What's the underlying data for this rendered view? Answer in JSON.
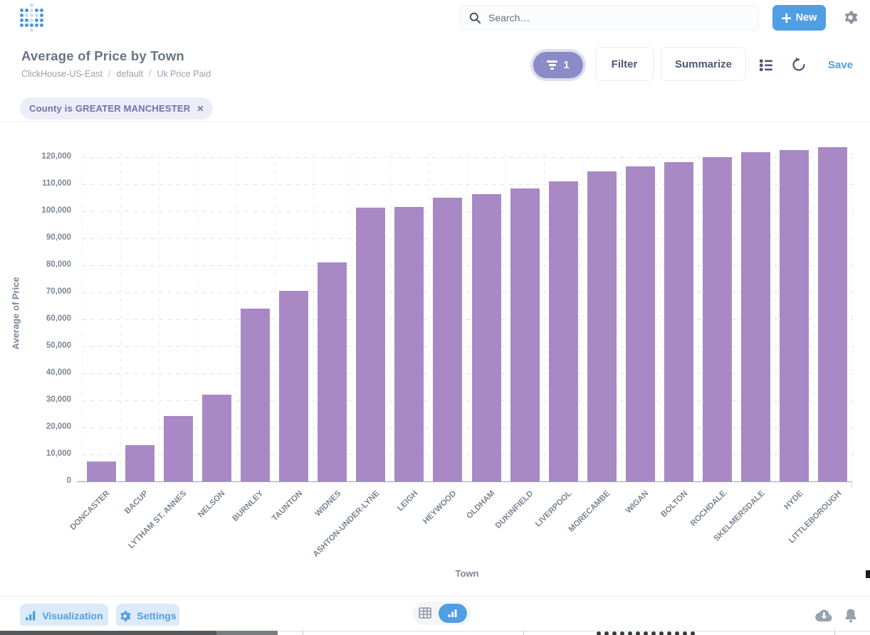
{
  "header": {
    "search_placeholder": "Search…",
    "new_label": "New"
  },
  "question": {
    "title": "Average of Price by Town",
    "breadcrumb": [
      "ClickHouse-US-East",
      "default",
      "Uk Price Paid"
    ],
    "filter_badge_count": "1",
    "filter_label": "Filter",
    "summarize_label": "Summarize",
    "save_label": "Save"
  },
  "filter_chip": {
    "text": "County is GREATER MANCHESTER",
    "close": "✕"
  },
  "footer": {
    "visualization_label": "Visualization",
    "settings_label": "Settings"
  },
  "colors": {
    "brand_blue": "#509EE3",
    "bar_purple": "#A989C5",
    "filter_purple": "#8A8BC7",
    "chip_bg": "#ECEDF8",
    "chip_text": "#7172AD",
    "axis_text": "#7C8693"
  },
  "chart_data": {
    "type": "bar",
    "title": "Average of Price by Town",
    "xlabel": "Town",
    "ylabel": "Average of Price",
    "ylim": [
      0,
      125000
    ],
    "grid": true,
    "y_ticks": [
      0,
      10000,
      20000,
      30000,
      40000,
      50000,
      60000,
      70000,
      80000,
      90000,
      100000,
      110000,
      120000
    ],
    "categories": [
      "DONCASTER",
      "BACUP",
      "LYTHAM ST. ANNES",
      "NELSON",
      "BURNLEY",
      "TAUNTON",
      "WIDNES",
      "ASHTON-UNDER-LYNE",
      "LEIGH",
      "HEYWOOD",
      "OLDHAM",
      "DUKINFIELD",
      "LIVERPOOL",
      "MORECAMBE",
      "WIGAN",
      "BOLTON",
      "ROCHDALE",
      "SKELMERSDALE",
      "HYDE",
      "LITTLEBOROUGH"
    ],
    "values": [
      7400,
      13500,
      24200,
      32200,
      64000,
      70600,
      81000,
      101200,
      101700,
      105000,
      106400,
      108400,
      111000,
      114700,
      116700,
      118200,
      120000,
      121800,
      122600,
      123700
    ]
  }
}
